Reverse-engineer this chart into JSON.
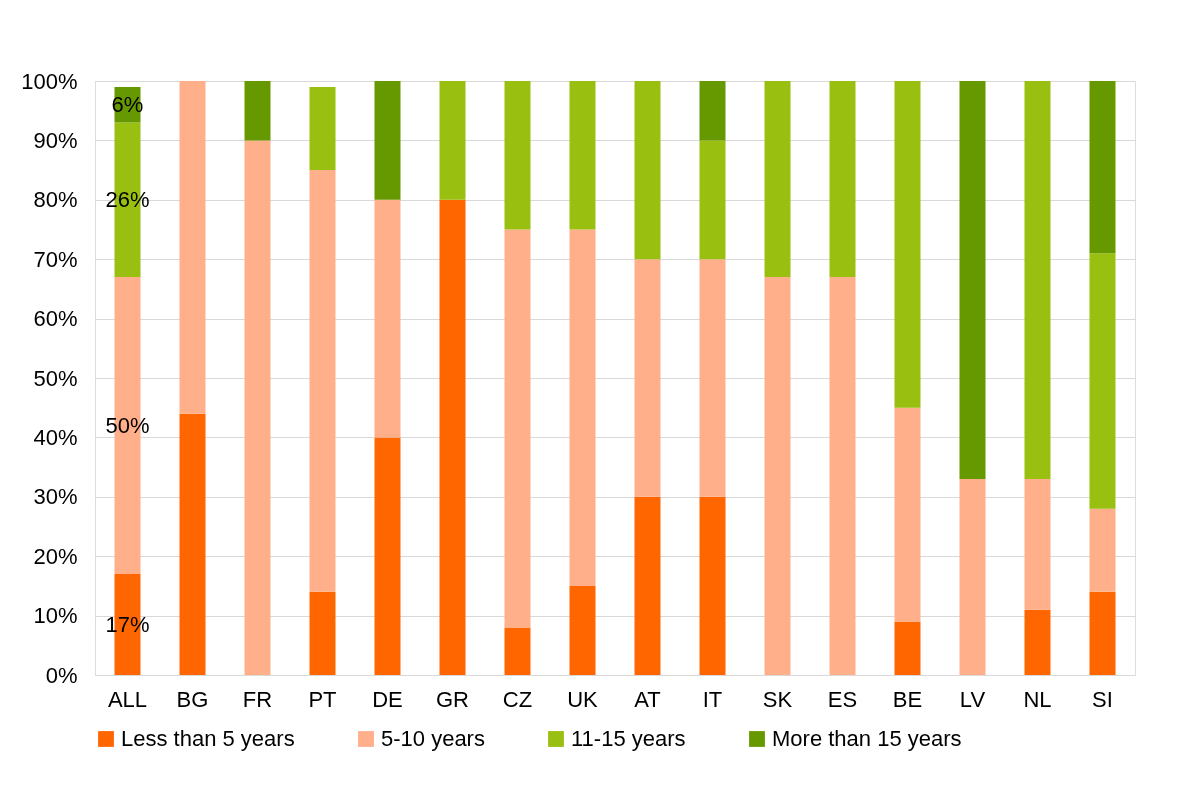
{
  "chart_data": {
    "type": "bar",
    "stacked": true,
    "categories": [
      "ALL",
      "BG",
      "FR",
      "PT",
      "DE",
      "GR",
      "CZ",
      "UK",
      "AT",
      "IT",
      "SK",
      "ES",
      "BE",
      "LV",
      "NL",
      "SI"
    ],
    "series": [
      {
        "name": "Less than 5 years",
        "color": "#ff6600",
        "values": [
          17,
          44,
          0,
          14,
          40,
          80,
          8,
          15,
          30,
          30,
          0,
          0,
          9,
          0,
          11,
          14
        ],
        "value_labels": [
          "17%",
          null,
          null,
          null,
          null,
          null,
          null,
          null,
          null,
          null,
          null,
          null,
          null,
          null,
          null,
          null
        ]
      },
      {
        "name": "5-10 years",
        "color": "#ffb08a",
        "values": [
          50,
          56,
          90,
          71,
          40,
          0,
          67,
          60,
          40,
          40,
          67,
          67,
          36,
          33,
          22,
          14
        ],
        "value_labels": [
          "50%",
          null,
          null,
          null,
          null,
          null,
          null,
          null,
          null,
          null,
          null,
          null,
          null,
          null,
          null,
          null
        ]
      },
      {
        "name": "11-15 years",
        "color": "#99bf10",
        "values": [
          26,
          0,
          0,
          14,
          0,
          20,
          25,
          25,
          30,
          20,
          33,
          33,
          55,
          0,
          67,
          43
        ],
        "value_labels": [
          "26%",
          null,
          null,
          null,
          null,
          null,
          null,
          null,
          null,
          null,
          null,
          null,
          null,
          null,
          null,
          null
        ]
      },
      {
        "name": "More than 15 years",
        "color": "#669900",
        "values": [
          6,
          0,
          10,
          0,
          20,
          0,
          0,
          0,
          0,
          10,
          0,
          0,
          0,
          67,
          0,
          29
        ],
        "value_labels": [
          "6%",
          null,
          null,
          null,
          null,
          null,
          null,
          null,
          null,
          null,
          null,
          null,
          null,
          null,
          null,
          null
        ]
      }
    ],
    "ylim": [
      0,
      100
    ],
    "yticks": [
      {
        "value": 0,
        "label": "0%"
      },
      {
        "value": 10,
        "label": "10%"
      },
      {
        "value": 20,
        "label": "20%"
      },
      {
        "value": 30,
        "label": "30%"
      },
      {
        "value": 40,
        "label": "40%"
      },
      {
        "value": 50,
        "label": "50%"
      },
      {
        "value": 60,
        "label": "60%"
      },
      {
        "value": 70,
        "label": "70%"
      },
      {
        "value": 80,
        "label": "80%"
      },
      {
        "value": 90,
        "label": "90%"
      },
      {
        "value": 100,
        "label": "100%"
      }
    ],
    "grid": "y",
    "legend": "bottom"
  }
}
